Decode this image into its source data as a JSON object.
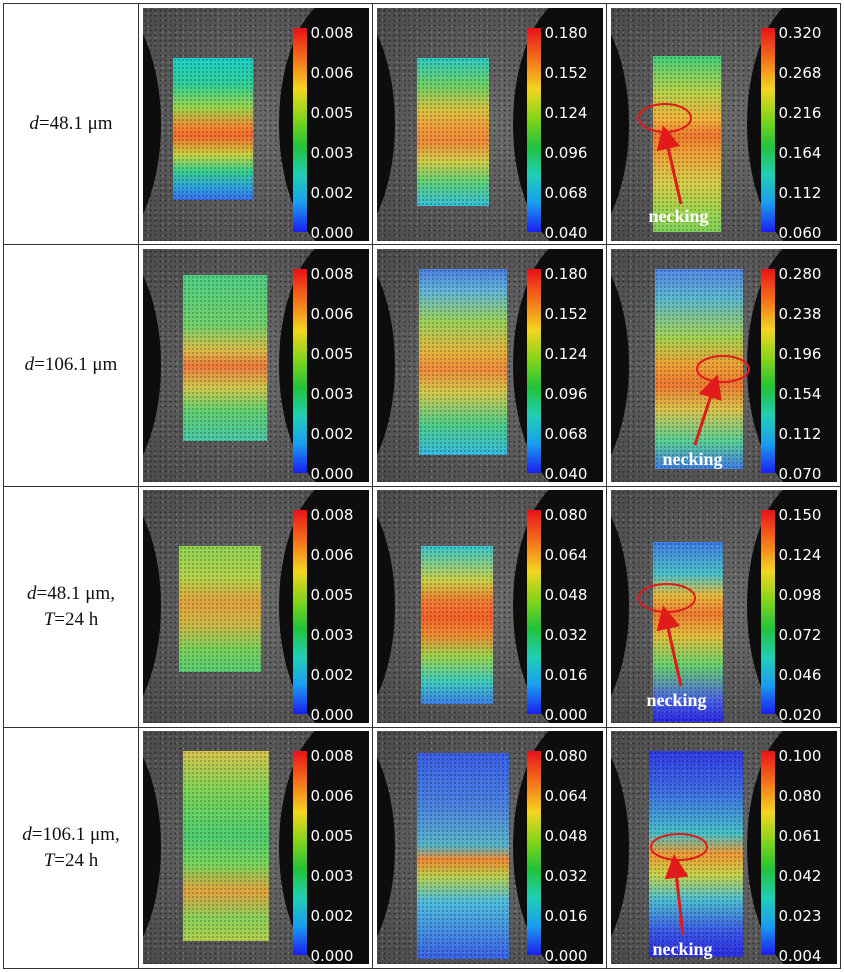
{
  "rows": [
    {
      "label": {
        "sym": "d",
        "text": "=48.1 μm",
        "sym2": "",
        "text2": ""
      },
      "panels": [
        {
          "ticks": [
            "0.008",
            "0.006",
            "0.005",
            "0.003",
            "0.002",
            "0.000"
          ]
        },
        {
          "ticks": [
            "0.180",
            "0.152",
            "0.124",
            "0.096",
            "0.068",
            "0.040"
          ]
        },
        {
          "ticks": [
            "0.320",
            "0.268",
            "0.216",
            "0.164",
            "0.112",
            "0.060"
          ],
          "necking": "necking"
        }
      ]
    },
    {
      "label": {
        "sym": "d",
        "text": "=106.1 μm",
        "sym2": "",
        "text2": ""
      },
      "panels": [
        {
          "ticks": [
            "0.008",
            "0.006",
            "0.005",
            "0.003",
            "0.002",
            "0.000"
          ]
        },
        {
          "ticks": [
            "0.180",
            "0.152",
            "0.124",
            "0.096",
            "0.068",
            "0.040"
          ]
        },
        {
          "ticks": [
            "0.280",
            "0.238",
            "0.196",
            "0.154",
            "0.112",
            "0.070"
          ],
          "necking": "necking"
        }
      ]
    },
    {
      "label": {
        "sym": "d",
        "text": "=48.1 μm,",
        "sym2": "T",
        "text2": "=24 h"
      },
      "panels": [
        {
          "ticks": [
            "0.008",
            "0.006",
            "0.005",
            "0.003",
            "0.002",
            "0.000"
          ]
        },
        {
          "ticks": [
            "0.080",
            "0.064",
            "0.048",
            "0.032",
            "0.016",
            "0.000"
          ]
        },
        {
          "ticks": [
            "0.150",
            "0.124",
            "0.098",
            "0.072",
            "0.046",
            "0.020"
          ],
          "necking": "necking"
        }
      ]
    },
    {
      "label": {
        "sym": "d",
        "text": "=106.1 μm,",
        "sym2": "T",
        "text2": "=24 h"
      },
      "panels": [
        {
          "ticks": [
            "0.008",
            "0.006",
            "0.005",
            "0.003",
            "0.002",
            "0.000"
          ]
        },
        {
          "ticks": [
            "0.080",
            "0.064",
            "0.048",
            "0.032",
            "0.016",
            "0.000"
          ]
        },
        {
          "ticks": [
            "0.100",
            "0.080",
            "0.061",
            "0.042",
            "0.023",
            "0.004"
          ],
          "necking": "necking"
        }
      ]
    }
  ]
}
